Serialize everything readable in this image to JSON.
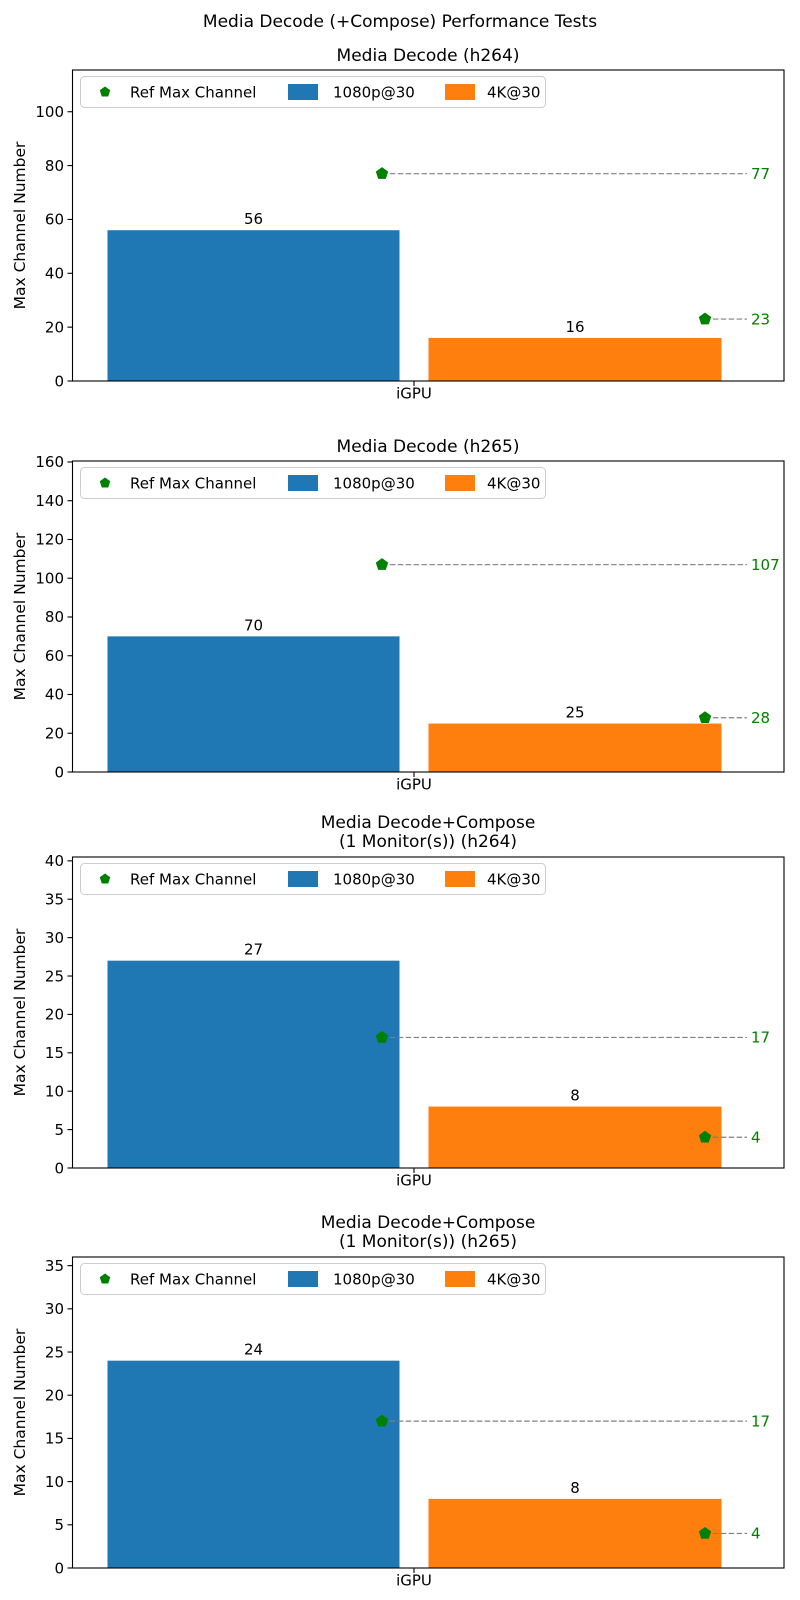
{
  "figure": {
    "suptitle": "Media Decode (+Compose) Performance Tests"
  },
  "colors": {
    "series": [
      "#1f77b4",
      "#ff7f0e"
    ],
    "ref": "#008000",
    "dash": "#808080",
    "axis": "#000000",
    "text": "#000000",
    "legend_border": "#cccccc",
    "background": "#ffffff"
  },
  "legend": {
    "position": "upper left",
    "items": [
      {
        "label": "Ref Max Channel",
        "swatch": "pentagon-marker",
        "color": "#008000"
      },
      {
        "label": "1080p@30",
        "swatch": "patch",
        "color": "#1f77b4"
      },
      {
        "label": "4K@30",
        "swatch": "patch",
        "color": "#ff7f0e"
      }
    ]
  },
  "chart_data": [
    {
      "type": "bar",
      "title": "Media Decode (h264)",
      "title_lines": [
        "Media Decode (h264)"
      ],
      "ylabel": "Max Channel Number",
      "xlabel": "",
      "categories": [
        "iGPU"
      ],
      "series": [
        {
          "name": "1080p@30",
          "values": [
            56
          ]
        },
        {
          "name": "4K@30",
          "values": [
            16
          ]
        }
      ],
      "ref_series": {
        "name": "Ref Max Channel",
        "values": [
          77,
          23
        ]
      },
      "ylim": [
        0,
        115.5
      ],
      "yticks": [
        0,
        20,
        40,
        60,
        80,
        100
      ],
      "grid": false,
      "legend_position": "upper left"
    },
    {
      "type": "bar",
      "title": "Media Decode (h265)",
      "title_lines": [
        "Media Decode (h265)"
      ],
      "ylabel": "Max Channel Number",
      "xlabel": "",
      "categories": [
        "iGPU"
      ],
      "series": [
        {
          "name": "1080p@30",
          "values": [
            70
          ]
        },
        {
          "name": "4K@30",
          "values": [
            25
          ]
        }
      ],
      "ref_series": {
        "name": "Ref Max Channel",
        "values": [
          107,
          28
        ]
      },
      "ylim": [
        0,
        160.5
      ],
      "yticks": [
        0,
        20,
        40,
        60,
        80,
        100,
        120,
        140,
        160
      ],
      "grid": false,
      "legend_position": "upper left"
    },
    {
      "type": "bar",
      "title": "Media Decode+Compose (1 Monitor(s)) (h264)",
      "title_lines": [
        "Media Decode+Compose",
        "(1 Monitor(s)) (h264)"
      ],
      "ylabel": "Max Channel Number",
      "xlabel": "",
      "categories": [
        "iGPU"
      ],
      "series": [
        {
          "name": "1080p@30",
          "values": [
            27
          ]
        },
        {
          "name": "4K@30",
          "values": [
            8
          ]
        }
      ],
      "ref_series": {
        "name": "Ref Max Channel",
        "values": [
          17,
          4
        ]
      },
      "ylim": [
        0,
        40.5
      ],
      "yticks": [
        0,
        5,
        10,
        15,
        20,
        25,
        30,
        35,
        40
      ],
      "grid": false,
      "legend_position": "upper left"
    },
    {
      "type": "bar",
      "title": "Media Decode+Compose (1 Monitor(s)) (h265)",
      "title_lines": [
        "Media Decode+Compose",
        "(1 Monitor(s)) (h265)"
      ],
      "ylabel": "Max Channel Number",
      "xlabel": "",
      "categories": [
        "iGPU"
      ],
      "series": [
        {
          "name": "1080p@30",
          "values": [
            24
          ]
        },
        {
          "name": "4K@30",
          "values": [
            8
          ]
        }
      ],
      "ref_series": {
        "name": "Ref Max Channel",
        "values": [
          17,
          4
        ]
      },
      "ylim": [
        0,
        36
      ],
      "yticks": [
        0,
        5,
        10,
        15,
        20,
        25,
        30,
        35
      ],
      "grid": false,
      "legend_position": "upper left"
    }
  ]
}
